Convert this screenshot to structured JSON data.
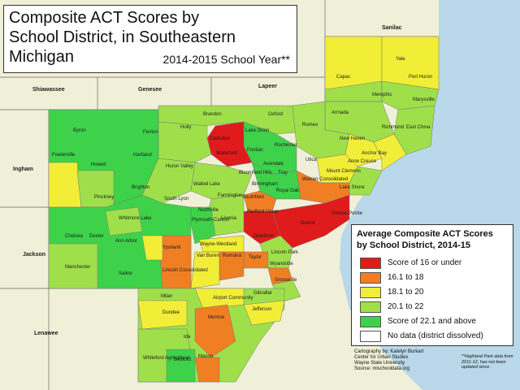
{
  "title": {
    "line1": "Composite ACT Scores by",
    "line2": "School District, in Southeastern",
    "line3": "Michigan",
    "subtitle": "2014-2015 School Year**"
  },
  "legend": {
    "title_line1": "Average Composite ACT Scores",
    "title_line2": "by School District, 2014-15",
    "items": [
      {
        "label": "Score of 16 or under",
        "color": "#e01b1b"
      },
      {
        "label": "16.1 to 18",
        "color": "#f07f24"
      },
      {
        "label": "18.1 to 20",
        "color": "#f2ee38"
      },
      {
        "label": "20.1 to 22",
        "color": "#9fe04a"
      },
      {
        "label": "Score of 22.1 and above",
        "color": "#3ed24a"
      },
      {
        "label": "No data (district dissolved)",
        "color": "#ffffff"
      }
    ]
  },
  "credits": {
    "line1": "Cartography by: Katelyn Burkart",
    "line2": "Center for Urban Studies",
    "line3": "Wayne State University",
    "line4": "Source: mischooldata.org"
  },
  "footnote": {
    "line1": "**Highland Park data from",
    "line2": "2011-12, has not been",
    "line3": "updated since"
  },
  "counties": [
    {
      "name": "Sanilac"
    },
    {
      "name": "Shiawassee"
    },
    {
      "name": "Genesee"
    },
    {
      "name": "Lapeer"
    },
    {
      "name": "Ingham"
    },
    {
      "name": "Jackson"
    },
    {
      "name": "Lenawee"
    }
  ],
  "districts": [
    "Yale",
    "Capac",
    "Port Huron",
    "Memphis",
    "Marysville",
    "Armada",
    "Richmond",
    "East China",
    "Romeo",
    "New Haven",
    "Anchor Bay",
    "Brandon",
    "Oxford",
    "Byron",
    "Fenton",
    "Holly",
    "Clarkston",
    "Lake Orion",
    "Fowlerville",
    "Hartland",
    "Howell",
    "Huron Valley",
    "Waterford",
    "Pontiac",
    "Rochester",
    "Utica",
    "Avondale",
    "Mount Clemens",
    "Anne Creuse",
    "Bloomfield Hills",
    "Troy",
    "Brighton",
    "Walled Lake",
    "Birmingham",
    "Royal Oak",
    "Warren Consolidated",
    "Lake Shore",
    "Pinckney",
    "South Lyon",
    "Farmington",
    "Southfield",
    "Grosse Pointe",
    "Northville",
    "Livonia",
    "Redford Union",
    "Detroit",
    "Whitmore Lake",
    "Plymouth-Canton",
    "Chelsea",
    "Dexter",
    "Ann Arbor",
    "Wayne-Westland",
    "Dearborn",
    "Ypsilanti",
    "Van Buren",
    "Romulus",
    "Taylor",
    "Lincoln Park",
    "Wyandotte",
    "Manchester",
    "Saline",
    "Lincoln Consolidated",
    "Grosse Ile",
    "Milan",
    "Airport Community",
    "Gibraltar",
    "Jefferson",
    "Dundee",
    "Monroe",
    "Ida",
    "Whiteford Agricultural",
    "Bedford",
    "Mason"
  ]
}
